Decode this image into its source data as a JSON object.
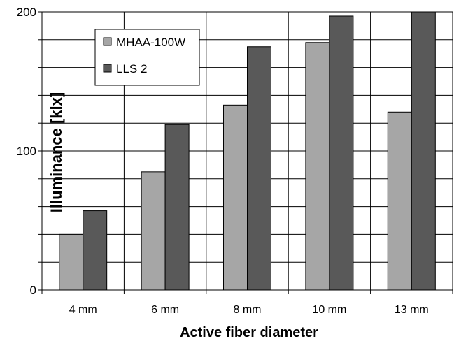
{
  "chart_data": {
    "type": "bar",
    "categories": [
      "4 mm",
      "6 mm",
      "8 mm",
      "10 mm",
      "13 mm"
    ],
    "series": [
      {
        "name": "MHAA-100W",
        "values": [
          40,
          85,
          133,
          178,
          128
        ],
        "color": "#a6a6a6"
      },
      {
        "name": "LLS 2",
        "values": [
          57,
          119,
          175,
          197,
          200
        ],
        "color": "#595959"
      }
    ],
    "title": "",
    "xlabel": "Active fiber diameter",
    "ylabel": "Illuminance [klx]",
    "ylim": [
      0,
      200
    ],
    "ytick_labels": [
      {
        "value": 0,
        "label": "0"
      },
      {
        "value": 100,
        "label": "100"
      },
      {
        "value": 200,
        "label": "200"
      }
    ],
    "minor_grid_step": 20,
    "grid": true,
    "legend_position": "top-left"
  }
}
